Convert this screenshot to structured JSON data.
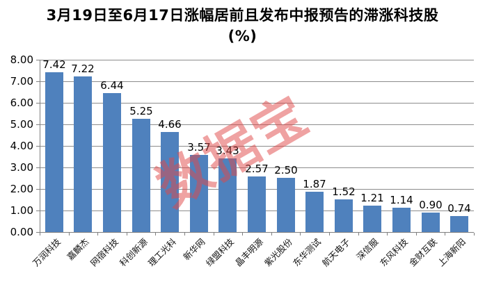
{
  "watermark": {
    "text": "数据宝",
    "color": "#E04848",
    "opacity": 0.5
  },
  "colors": {
    "bar": "#4F81BD",
    "gridline": "#8C8C8C",
    "axis": "#7F7F7F",
    "text": "#000000"
  },
  "chart_data": {
    "type": "bar",
    "title": "3月19日至6月17日涨幅居前且发布中报预告的滞涨科技股 (%)",
    "categories": [
      "万润科技",
      "嘉麟杰",
      "网宿科技",
      "科创新源",
      "理工光科",
      "新华网",
      "绿盟科技",
      "晶丰明源",
      "紫光股份",
      "东华测试",
      "航天电子",
      "深信服",
      "东风科技",
      "金财互联",
      "上海新阳"
    ],
    "values": [
      7.42,
      7.22,
      6.44,
      5.25,
      4.66,
      3.57,
      3.43,
      2.57,
      2.5,
      1.87,
      1.52,
      1.21,
      1.14,
      0.9,
      0.74
    ],
    "value_labels": [
      "7.42",
      "7.22",
      "6.44",
      "5.25",
      "4.66",
      "3.57",
      "3.43",
      "2.57",
      "2.50",
      "1.87",
      "1.52",
      "1.21",
      "1.14",
      "0.90",
      "0.74"
    ],
    "xlabel": "",
    "ylabel": "",
    "ylim": [
      0,
      8
    ],
    "yticks": [
      "8.00",
      "7.00",
      "6.00",
      "5.00",
      "4.00",
      "3.00",
      "2.00",
      "1.00",
      "0.00"
    ],
    "grid": true,
    "legend": false,
    "data_labels": true,
    "x_label_rotation_deg": -45
  }
}
